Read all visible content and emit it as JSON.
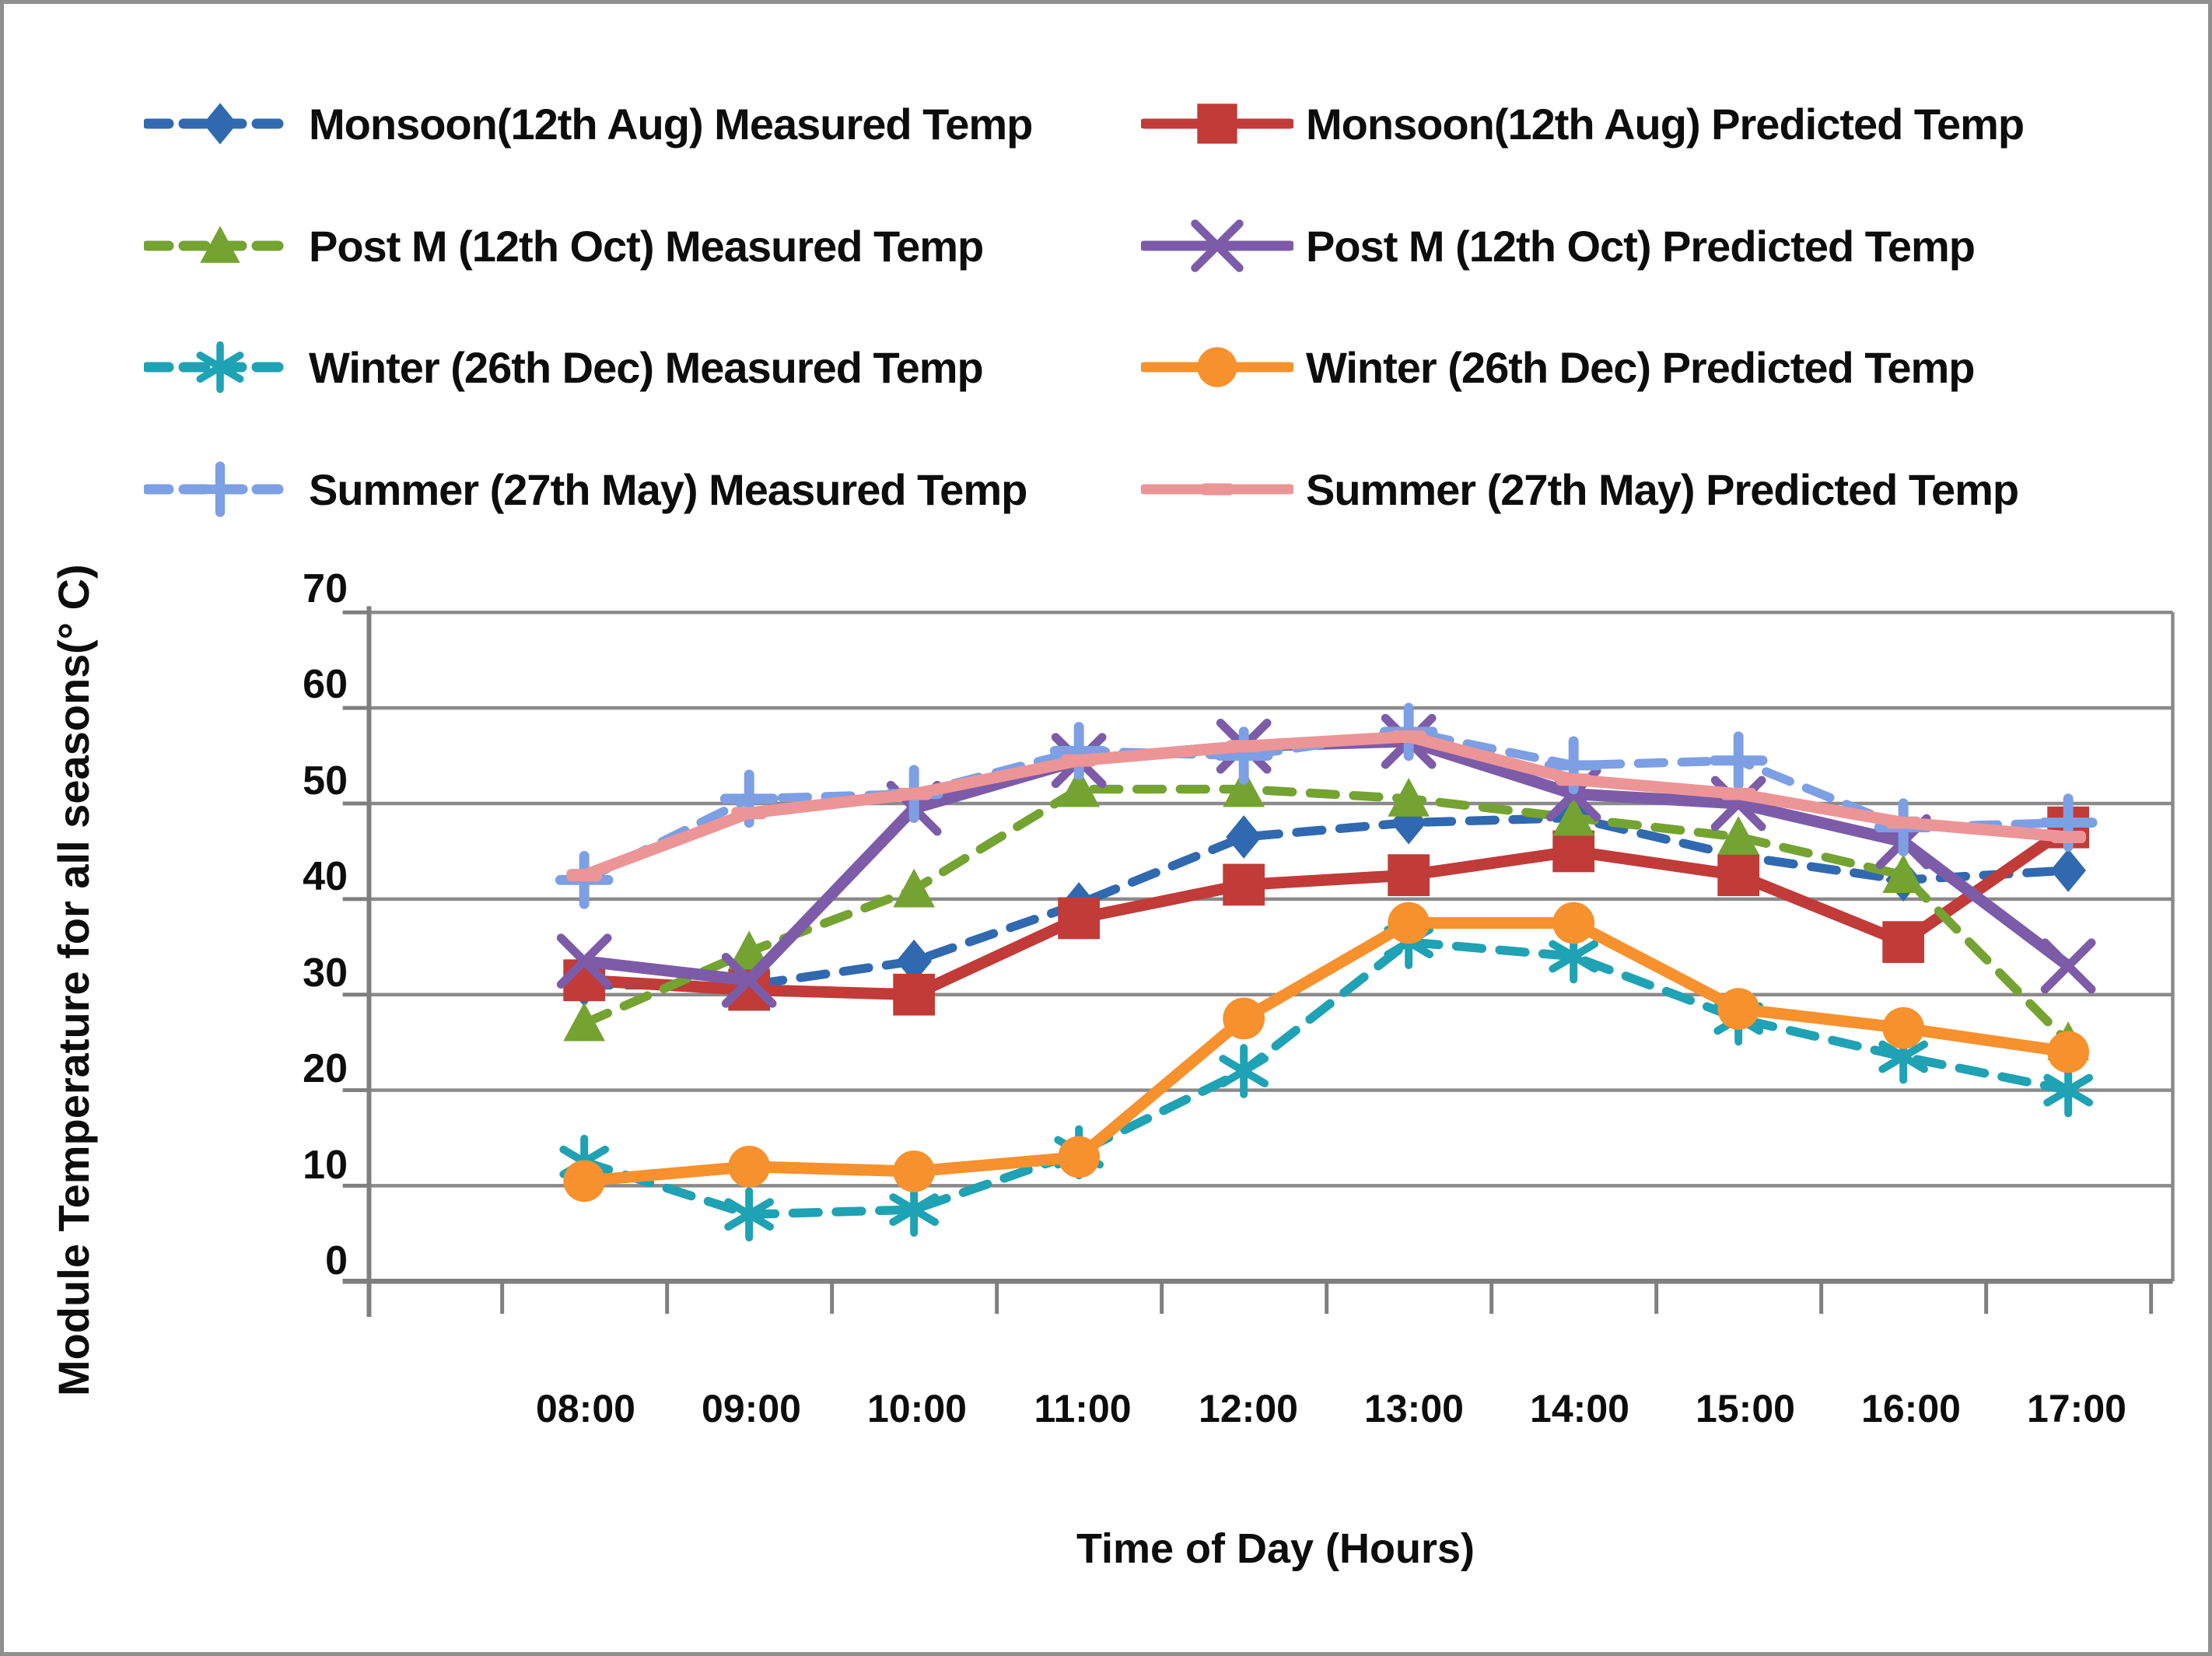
{
  "chart_data": {
    "type": "line",
    "title": "",
    "x_axis": {
      "title": "Time of Day (Hours)"
    },
    "y_axis": {
      "title_line1": "Module Temperature for all seasons",
      "title_line2": "(° C)",
      "min": 0,
      "max": 70,
      "step": 10,
      "ticks": [
        "0",
        "10",
        "20",
        "30",
        "40",
        "50",
        "60",
        "70"
      ]
    },
    "grid": "horizontal",
    "legend_position": "top",
    "categories": [
      "08:00",
      "09:00",
      "10:00",
      "11:00",
      "12:00",
      "13:00",
      "14:00",
      "15:00",
      "16:00",
      "17:00"
    ],
    "series": [
      {
        "name": "Monsoon(12th Aug) Measured Temp",
        "color": "#3069B0",
        "line": "dashed",
        "marker": "diamond",
        "values": [
          31,
          31,
          33.5,
          39.5,
          46.5,
          48,
          48.5,
          44.5,
          42,
          43
        ]
      },
      {
        "name": "Monsoon(12th Aug) Predicted Temp",
        "color": "#C13B38",
        "line": "solid",
        "marker": "square",
        "values": [
          31.5,
          30.5,
          30,
          38,
          41.5,
          42.5,
          45,
          42.5,
          35.5,
          47.5
        ]
      },
      {
        "name": "Post M (12th Oct) Measured Temp",
        "color": "#74A332",
        "line": "dashed",
        "marker": "triangle",
        "values": [
          27,
          34.5,
          41,
          51.5,
          51.5,
          50.5,
          48.5,
          46.5,
          42.5,
          25
        ]
      },
      {
        "name": "Post M (12th Oct) Predicted Temp",
        "color": "#7C5CA8",
        "line": "solid",
        "marker": "x",
        "values": [
          33.5,
          31.5,
          49.5,
          54.5,
          56,
          56.5,
          51,
          50,
          46,
          33
        ]
      },
      {
        "name": "Winter (26th Dec) Measured Temp",
        "color": "#1EA2B4",
        "line": "dashed",
        "marker": "asterisk",
        "values": [
          12.5,
          7,
          7.5,
          13.5,
          22,
          35.5,
          34,
          27.5,
          23.5,
          20
        ]
      },
      {
        "name": "Winter (26th Dec) Predicted Temp",
        "color": "#F6912E",
        "line": "solid",
        "marker": "circle",
        "values": [
          10.5,
          12,
          11.5,
          13,
          27.5,
          37.5,
          37.5,
          28.5,
          26.5,
          24
        ]
      },
      {
        "name": "Summer (27th May) Measured Temp",
        "color": "#7D9FE3",
        "line": "dashed",
        "marker": "plus",
        "values": [
          42,
          50.5,
          51,
          55.5,
          55,
          57.5,
          54,
          54.5,
          47.5,
          48
        ]
      },
      {
        "name": "Summer (27th May) Predicted Temp",
        "color": "#EC9597",
        "line": "solid",
        "marker": "dash",
        "values": [
          42.5,
          49,
          51,
          54.5,
          56,
          57,
          52.5,
          51,
          48,
          46.5
        ]
      }
    ]
  }
}
